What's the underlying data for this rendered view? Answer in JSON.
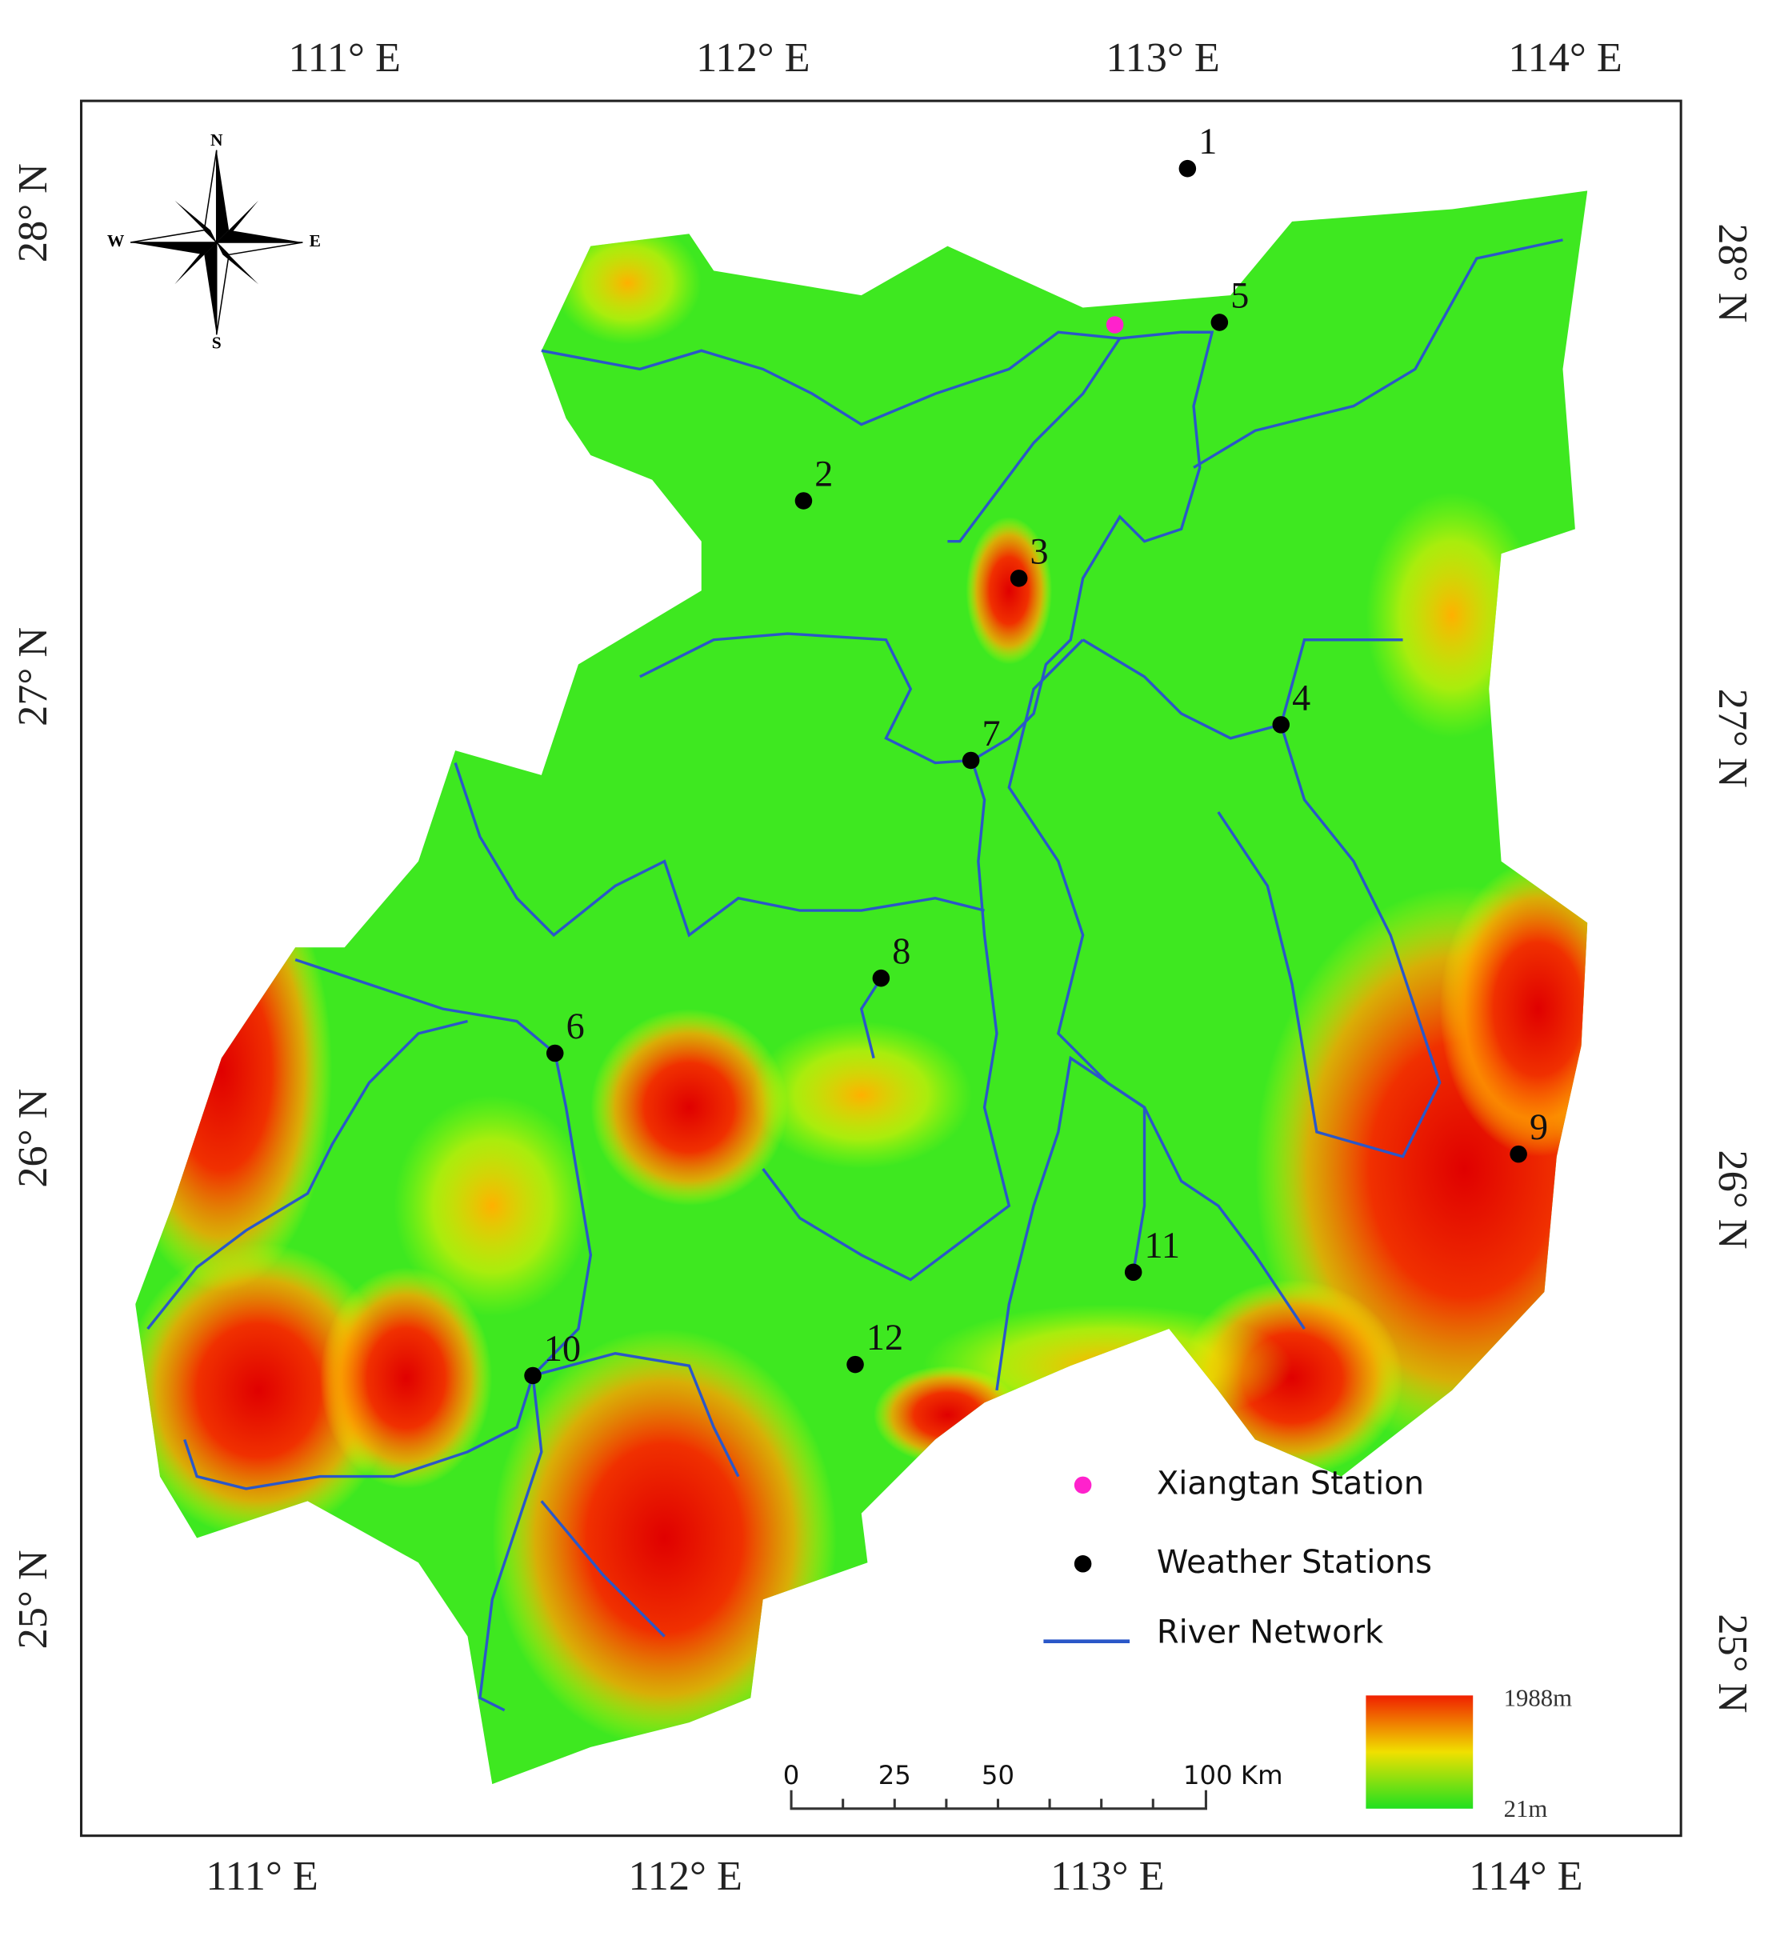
{
  "axes": {
    "top": [
      "111° E",
      "112° E",
      "113° E",
      "114° E"
    ],
    "bottom": [
      "111° E",
      "112° E",
      "113° E",
      "114° E"
    ],
    "left": [
      "28° N",
      "27° N",
      "26° N",
      "25° N"
    ],
    "right": [
      "28° N",
      "27° N",
      "26° N",
      "25° N"
    ]
  },
  "compass": {
    "north": "N",
    "south": "S",
    "west": "W",
    "east": "E"
  },
  "stations": [
    "1",
    "2",
    "3",
    "4",
    "5",
    "6",
    "7",
    "8",
    "9",
    "10",
    "11",
    "12"
  ],
  "legend": {
    "items": [
      "Xiangtan Station",
      "Weather Stations",
      "River  Network"
    ]
  },
  "scale_bar": [
    "0",
    "25",
    "50",
    "100 Km"
  ],
  "elevation": {
    "max": "1988m",
    "min": "21m"
  }
}
